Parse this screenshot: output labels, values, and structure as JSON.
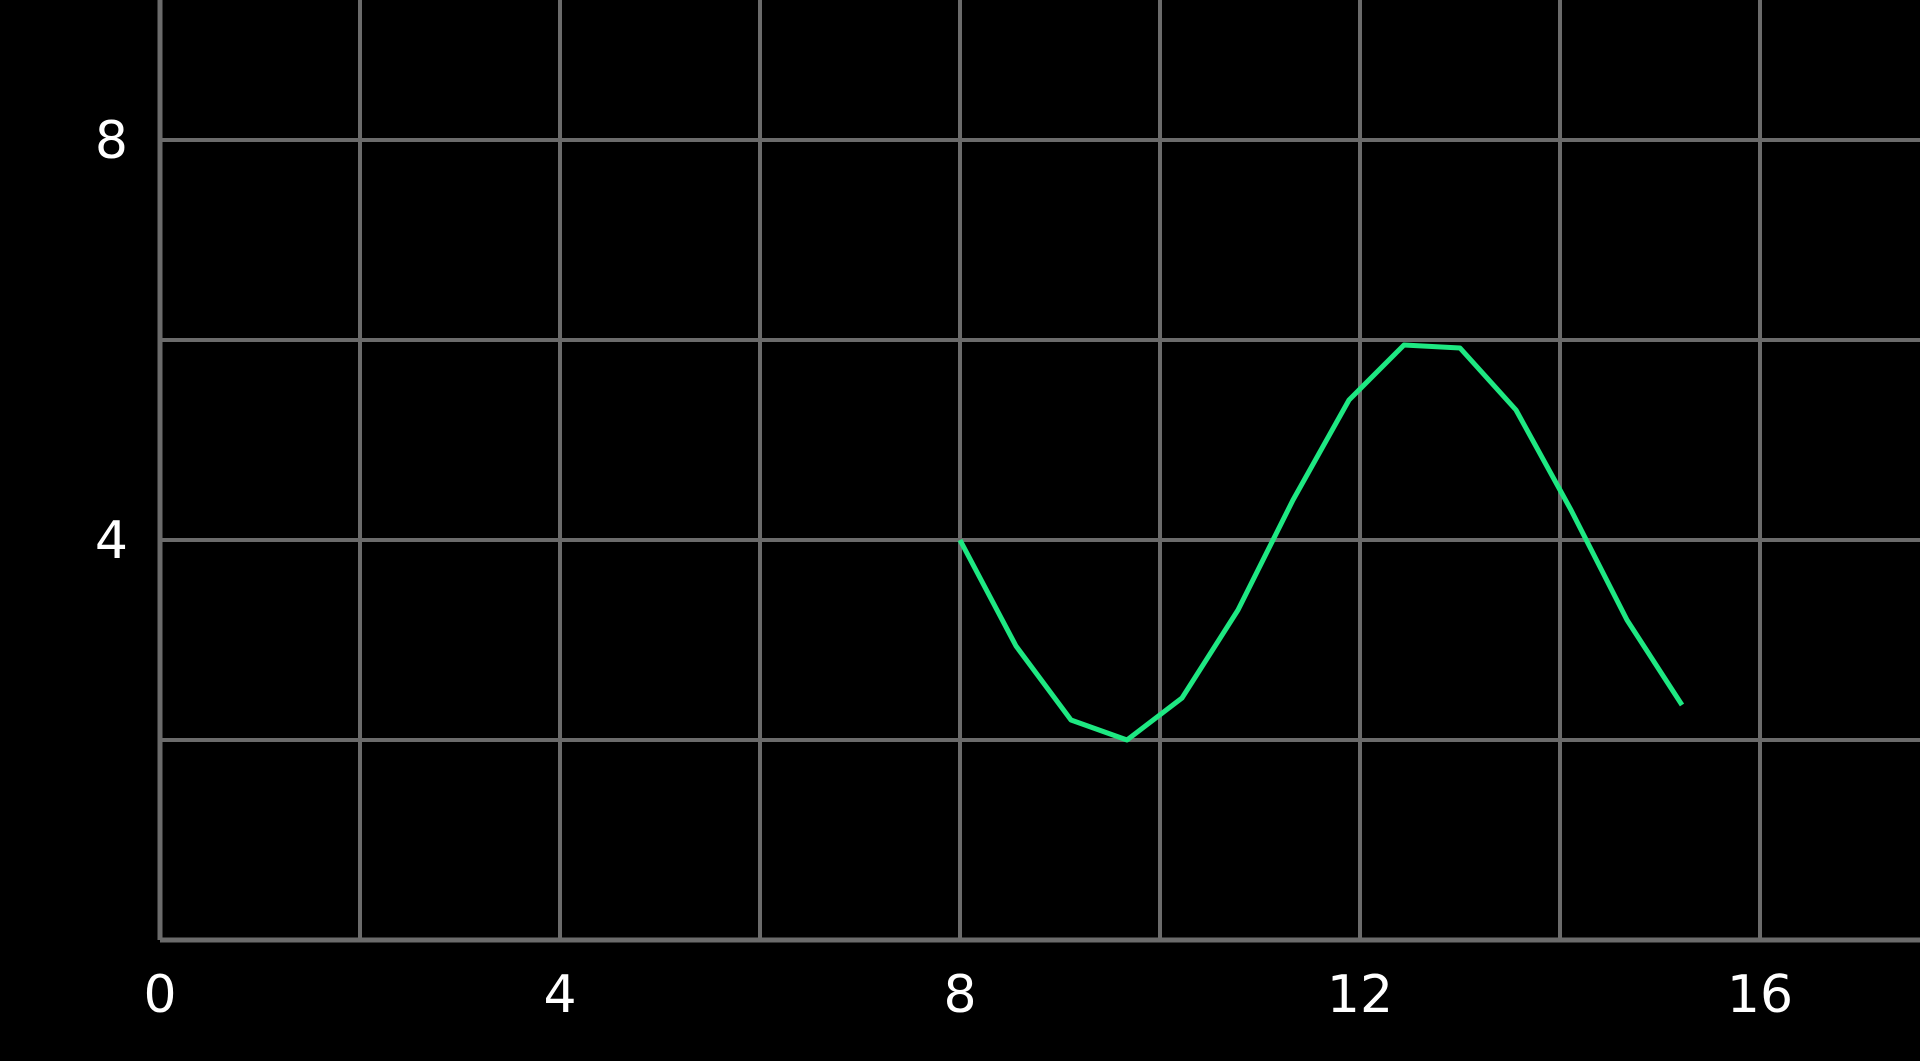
{
  "chart_data": {
    "type": "line",
    "title": "",
    "xlabel": "",
    "ylabel": "",
    "xlim": [
      0,
      17.6
    ],
    "ylim": [
      0,
      9.4
    ],
    "x_ticks": [
      0,
      4,
      8,
      12,
      16
    ],
    "x_tick_labels": [
      "0",
      "4",
      "8",
      "12",
      "16"
    ],
    "y_ticks": [
      4,
      8
    ],
    "y_tick_labels": [
      "4",
      "8"
    ],
    "x_grid": [
      0,
      2,
      4,
      6,
      8,
      10,
      12,
      14,
      16
    ],
    "y_grid": [
      0,
      2,
      4,
      6,
      8
    ],
    "grid": true,
    "series": [
      {
        "color": "#1ee882",
        "x": [
          8.0,
          8.56,
          9.11,
          9.67,
          10.22,
          10.78,
          11.33,
          11.89,
          12.44,
          13.0,
          13.56,
          14.11,
          14.67,
          15.22
        ],
        "y": [
          4.0,
          2.94,
          2.2,
          2.0,
          2.42,
          3.3,
          4.4,
          5.4,
          5.95,
          5.92,
          5.3,
          4.3,
          3.2,
          2.35
        ]
      }
    ],
    "colors": {
      "background": "#000000",
      "grid": "#6b6b6b",
      "text": "#ffffff"
    }
  }
}
